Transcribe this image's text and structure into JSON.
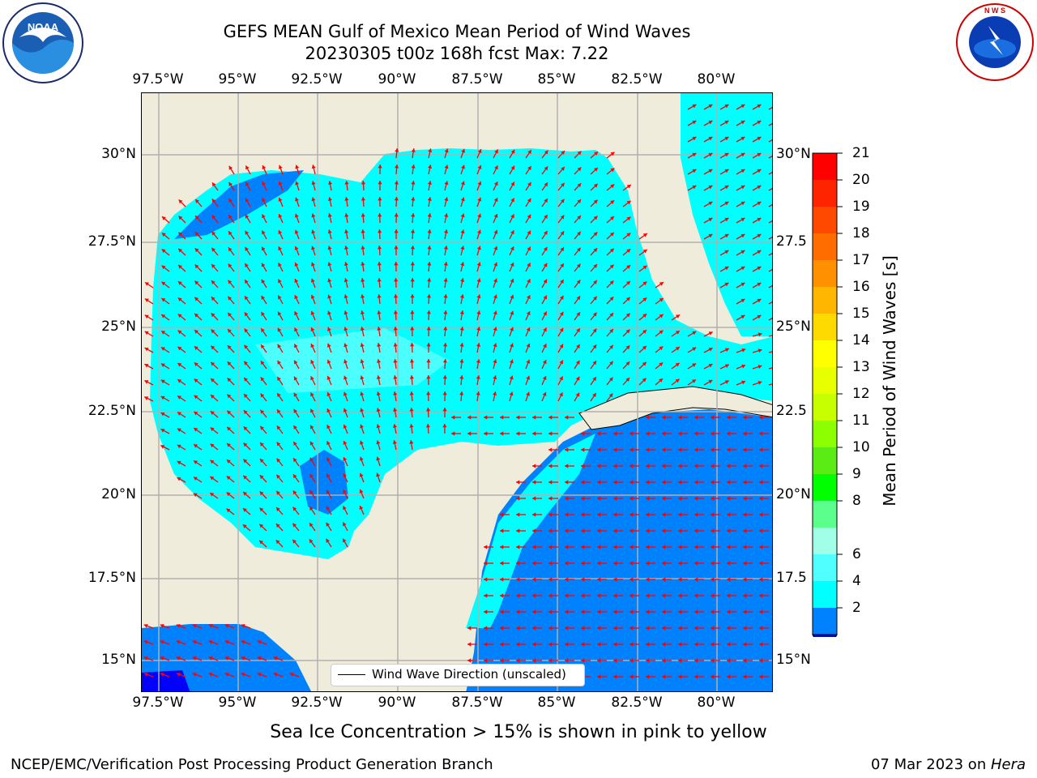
{
  "title_line1": "GEFS MEAN Gulf of Mexico Mean Period of Wind Waves",
  "title_line2": "20230305 t00z 168h fcst   Max: 7.22",
  "lon_ticks": [
    "97.5°W",
    "95°W",
    "92.5°W",
    "90°W",
    "87.5°W",
    "85°W",
    "82.5°W",
    "80°W"
  ],
  "lat_ticks_left": [
    "30°N",
    "27.5°N",
    "25°N",
    "22.5°N",
    "20°N",
    "17.5°N",
    "15°N"
  ],
  "lat_ticks_right": [
    "30°N",
    "27.5",
    "25°N",
    "22.5",
    "20°N",
    "17.5",
    "15°N"
  ],
  "legend": {
    "label": "Wind Wave Direction (unscaled)"
  },
  "colorbar": {
    "title": "Mean Period of Wind Waves [s]",
    "tick_labels": [
      "21",
      "20",
      "19",
      "18",
      "17",
      "16",
      "15",
      "14",
      "13",
      "12",
      "11",
      "10",
      "9",
      "8",
      "6",
      "4",
      "2"
    ],
    "colors": [
      "#ff0000",
      "#ff2400",
      "#ff4800",
      "#ff6d00",
      "#ff9100",
      "#ffb600",
      "#ffda00",
      "#ffff00",
      "#e8ff00",
      "#c8ff00",
      "#8cff00",
      "#5aec14",
      "#00ff00",
      "#5aff8c",
      "#a0ffe6",
      "#50ffff",
      "#00ffff",
      "#0082ff"
    ],
    "under_color": "#0000ff"
  },
  "colors": {
    "land": "#efecdb",
    "water_light": "#00ffff",
    "water_mid": "#4cffff",
    "water_dark": "#0082ff",
    "arrow": "#ff0000",
    "grid": "#b0b0b0"
  },
  "logos": {
    "left": "NOAA",
    "right": "NATIONAL WEATHER SERVICE"
  },
  "footer_note": "Sea Ice Concentration > 15% is shown in pink to yellow",
  "footer_left": "NCEP/EMC/Verification Post Processing Product Generation Branch",
  "footer_date": "07 Mar 2023 on ",
  "footer_machine": "Hera"
}
